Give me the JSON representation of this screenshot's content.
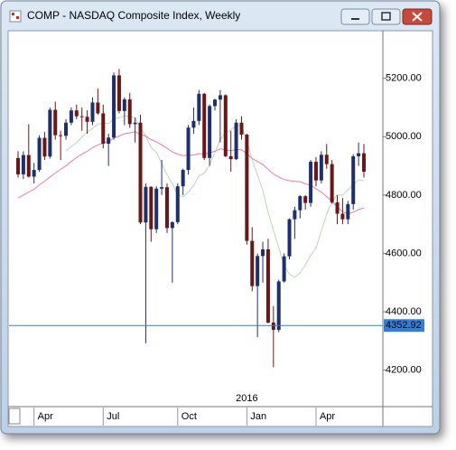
{
  "chart_data": {
    "type": "candlestick",
    "title": "COMP - NASDAQ Composite Index, Weekly",
    "annotation": "2016",
    "annotation_index": 43,
    "categories": [
      null,
      null,
      null,
      "Apr",
      null,
      null,
      null,
      null,
      null,
      null,
      null,
      null,
      null,
      null,
      null,
      null,
      "Jul",
      null,
      null,
      null,
      null,
      null,
      null,
      null,
      null,
      null,
      null,
      null,
      null,
      null,
      "Oct",
      null,
      null,
      null,
      null,
      null,
      null,
      null,
      null,
      null,
      null,
      null,
      null,
      "Jan",
      null,
      null,
      null,
      null,
      null,
      null,
      null,
      null,
      null,
      null,
      null,
      null,
      "Apr",
      null,
      null,
      null,
      null,
      null,
      null,
      null,
      null,
      null
    ],
    "open": [
      4927,
      4871,
      4937,
      4863,
      4886,
      4996,
      4932,
      5092,
      5005,
      5003,
      5048,
      5090,
      5070,
      5068,
      5051,
      5117,
      5080,
      4976,
      4997,
      5210,
      5088,
      5128,
      5043,
      5048,
      4706,
      4828,
      4683,
      4822,
      4827,
      4687,
      4707,
      4830,
      4886,
      5031,
      5054,
      5147,
      4927,
      5105,
      5127,
      5142,
      4933,
      4923,
      5048,
      5007,
      4643,
      4488,
      4591,
      4614,
      4363,
      4338,
      4504,
      4590,
      4717,
      4748,
      4796,
      4773,
      4914,
      4850,
      4938,
      4906,
      4775,
      4736,
      4717,
      4769,
      4933,
      4943
    ],
    "high": [
      4950,
      4950,
      5043,
      4910,
      5005,
      5016,
      5100,
      5120,
      5020,
      5060,
      5100,
      5110,
      5100,
      5090,
      5135,
      5165,
      5110,
      5010,
      5220,
      5232,
      5135,
      5150,
      5065,
      5075,
      4840,
      4830,
      4830,
      4920,
      4840,
      4710,
      4840,
      4890,
      5040,
      5100,
      5160,
      5150,
      5110,
      5130,
      5160,
      5145,
      5020,
      5060,
      5070,
      5010,
      4690,
      4600,
      4640,
      4650,
      4420,
      4510,
      4600,
      4720,
      4760,
      4800,
      4800,
      4920,
      4930,
      4950,
      4975,
      4920,
      4800,
      4790,
      4780,
      4940,
      4980,
      4975
    ],
    "low": [
      4860,
      4855,
      4860,
      4840,
      4880,
      4920,
      4925,
      4990,
      4920,
      4990,
      5040,
      5060,
      5020,
      5010,
      5040,
      5075,
      4960,
      4900,
      4990,
      5080,
      5040,
      5030,
      4980,
      4700,
      4292,
      4640,
      4670,
      4800,
      4670,
      4500,
      4700,
      4800,
      4870,
      5010,
      5040,
      4920,
      4900,
      5090,
      4980,
      4930,
      4880,
      4920,
      4990,
      4630,
      4470,
      4313,
      4500,
      4360,
      4210,
      4330,
      4500,
      4580,
      4650,
      4720,
      4750,
      4760,
      4830,
      4840,
      4890,
      4770,
      4700,
      4700,
      4700,
      4750,
      4900,
      4860
    ],
    "close": [
      4871,
      4937,
      4863,
      4886,
      4996,
      4932,
      5092,
      5005,
      5003,
      5048,
      5090,
      5070,
      5068,
      5051,
      5117,
      5080,
      4976,
      4997,
      5210,
      5088,
      5128,
      5043,
      5048,
      4706,
      4828,
      4683,
      4822,
      4827,
      4687,
      4707,
      4830,
      4886,
      5031,
      5054,
      5147,
      4927,
      5105,
      5127,
      5142,
      4933,
      4923,
      5048,
      5007,
      4643,
      4488,
      4591,
      4614,
      4363,
      4338,
      4504,
      4590,
      4717,
      4748,
      4796,
      4773,
      4914,
      4850,
      4938,
      4906,
      4775,
      4736,
      4717,
      4769,
      4933,
      4943,
      4880
    ],
    "up_color": "#1c2f6e",
    "down_color": "#6e1616",
    "overlays": [
      {
        "color": "#b9d8b9",
        "values": [
          null,
          null,
          null,
          null,
          null,
          null,
          null,
          null,
          null,
          4950,
          4966,
          4979,
          4999,
          5016,
          5028,
          5043,
          5046,
          5045,
          5061,
          5065,
          5071,
          5068,
          5066,
          5030,
          5003,
          4963,
          4947,
          4909,
          4870,
          4838,
          4800,
          4794,
          4810,
          4833,
          4865,
          4875,
          4903,
          4946,
          4990,
          5013,
          5023,
          5039,
          5037,
          4986,
          4921,
          4868,
          4817,
          4740,
          4680,
          4620,
          4558,
          4529,
          4518,
          4533,
          4561,
          4593,
          4619,
          4677,
          4734,
          4778,
          4800,
          4800,
          4818,
          4836,
          4852,
          4849
        ]
      },
      {
        "color": "#f07aa8",
        "values": [
          4790,
          4800,
          4810,
          4820,
          4835,
          4848,
          4862,
          4875,
          4888,
          4900,
          4915,
          4928,
          4940,
          4950,
          4962,
          4972,
          4978,
          4984,
          4995,
          5002,
          5010,
          5013,
          5017,
          5008,
          5002,
          4990,
          4982,
          4972,
          4960,
          4948,
          4940,
          4935,
          4936,
          4937,
          4942,
          4940,
          4945,
          4950,
          4958,
          4955,
          4952,
          4956,
          4955,
          4942,
          4925,
          4915,
          4905,
          4888,
          4872,
          4862,
          4853,
          4849,
          4847,
          4846,
          4838,
          4835,
          4822,
          4810,
          4795,
          4778,
          4760,
          4743,
          4735,
          4741,
          4750,
          4756
        ]
      }
    ],
    "price_line": 4352.92,
    "price_line_color": "#2f7fd8",
    "ylim": [
      4075,
      5360
    ],
    "yticks": [
      {
        "value": 4200,
        "label": "4200.00"
      },
      {
        "value": 4400,
        "label": "4400.00"
      },
      {
        "value": 4600,
        "label": "4600.00"
      },
      {
        "value": 4800,
        "label": "4800.00"
      },
      {
        "value": 5000,
        "label": "5000.00"
      },
      {
        "value": 5200,
        "label": "5200.00"
      }
    ]
  }
}
